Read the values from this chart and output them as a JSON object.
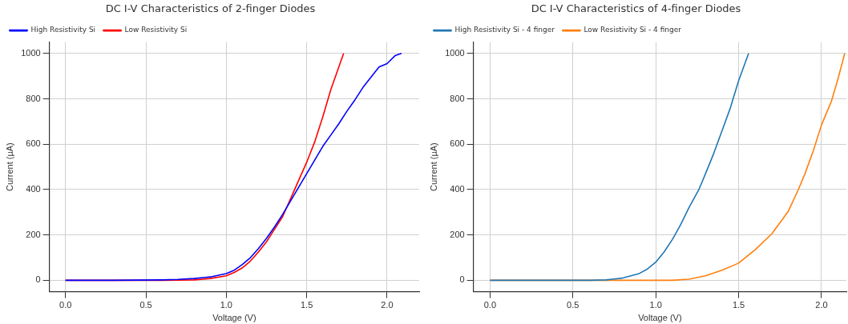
{
  "chart_data": [
    {
      "type": "line",
      "title": "DC I-V Characteristics of 2-finger Diodes",
      "xlabel": "Voltage (V)",
      "ylabel": "Current (µA)",
      "xlim": [
        -0.1,
        2.2
      ],
      "ylim": [
        -50,
        1050
      ],
      "xticks": [
        {
          "value": 0,
          "label": "0.0"
        },
        {
          "value": 0.5,
          "label": "0.5"
        },
        {
          "value": 1,
          "label": "1.0"
        },
        {
          "value": 1.5,
          "label": "1.5"
        },
        {
          "value": 2,
          "label": "2.0"
        }
      ],
      "yticks": [
        0,
        200,
        400,
        600,
        800,
        1000
      ],
      "grid": true,
      "legend": "top left",
      "marker": "none",
      "line_style": "solid",
      "series": [
        {
          "name": "High Resistivity Si",
          "color": "#0000ff",
          "x": [
            0,
            0.3,
            0.6,
            0.7,
            0.8,
            0.9,
            1.0,
            1.05,
            1.1,
            1.15,
            1.2,
            1.25,
            1.3,
            1.35,
            1.4,
            1.45,
            1.5,
            1.55,
            1.6,
            1.65,
            1.7,
            1.75,
            1.8,
            1.85,
            1.9,
            1.95,
            2.0,
            2.05,
            2.09
          ],
          "values": [
            0,
            0,
            2,
            4,
            8,
            15,
            30,
            45,
            70,
            100,
            140,
            185,
            235,
            290,
            350,
            410,
            470,
            530,
            590,
            640,
            690,
            745,
            795,
            850,
            895,
            940,
            955,
            990,
            1000
          ]
        },
        {
          "name": "Low Resistivity Si",
          "color": "#ff0000",
          "x": [
            0,
            0.3,
            0.6,
            0.8,
            0.9,
            1.0,
            1.05,
            1.1,
            1.15,
            1.2,
            1.25,
            1.3,
            1.35,
            1.4,
            1.45,
            1.5,
            1.55,
            1.6,
            1.65,
            1.7,
            1.73
          ],
          "values": [
            0,
            0,
            0,
            2,
            8,
            20,
            35,
            55,
            85,
            125,
            170,
            225,
            280,
            360,
            440,
            520,
            610,
            720,
            840,
            940,
            1000
          ]
        }
      ]
    },
    {
      "type": "line",
      "title": "DC I-V Characteristics of 4-finger Diodes",
      "xlabel": "Voltage (V)",
      "ylabel": "Current (µA)",
      "xlim": [
        -0.1,
        2.15
      ],
      "ylim": [
        -50,
        1050
      ],
      "xticks": [
        {
          "value": 0,
          "label": "0.0"
        },
        {
          "value": 0.5,
          "label": "0.5"
        },
        {
          "value": 1,
          "label": "1.0"
        },
        {
          "value": 1.5,
          "label": "1.5"
        },
        {
          "value": 2,
          "label": "2.0"
        }
      ],
      "yticks": [
        0,
        200,
        400,
        600,
        800,
        1000
      ],
      "grid": true,
      "legend": "top left",
      "marker": "none",
      "line_style": "solid",
      "series": [
        {
          "name": "High Resistivity Si - 4 finger",
          "color": "#1f77b4",
          "x": [
            0,
            0.3,
            0.6,
            0.7,
            0.8,
            0.9,
            0.95,
            1.0,
            1.05,
            1.1,
            1.15,
            1.2,
            1.26,
            1.3,
            1.35,
            1.4,
            1.45,
            1.5,
            1.56
          ],
          "values": [
            0,
            0,
            0,
            2,
            10,
            30,
            50,
            80,
            125,
            180,
            245,
            320,
            400,
            470,
            560,
            660,
            760,
            880,
            1000
          ]
        },
        {
          "name": "Low Resistivity Si - 4 finger",
          "color": "#ff7f0e",
          "x": [
            0,
            0.5,
            1.0,
            1.1,
            1.2,
            1.3,
            1.4,
            1.5,
            1.6,
            1.7,
            1.8,
            1.86,
            1.9,
            1.95,
            2.0,
            2.06,
            2.1,
            2.14
          ],
          "values": [
            0,
            0,
            0,
            0,
            5,
            20,
            45,
            76,
            135,
            205,
            305,
            400,
            470,
            570,
            685,
            790,
            890,
            1000
          ]
        }
      ]
    }
  ]
}
